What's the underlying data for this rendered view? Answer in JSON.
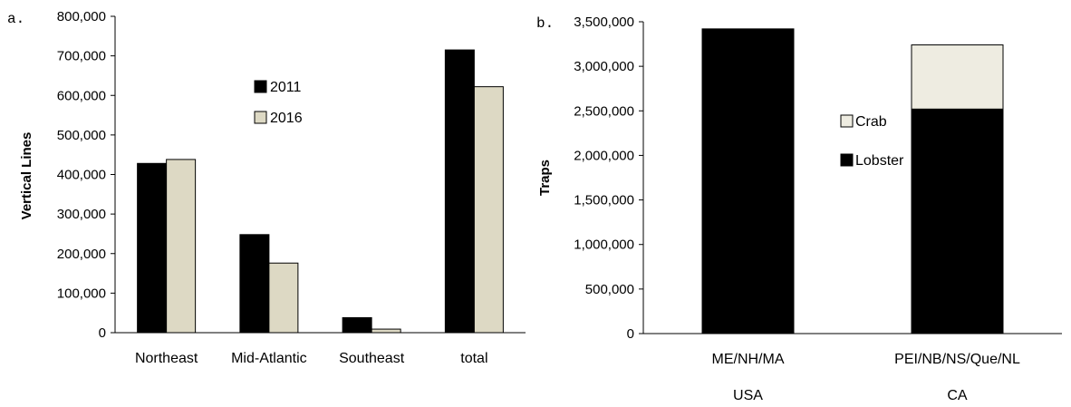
{
  "chart_data": [
    {
      "type": "bar",
      "panel_label": "a.",
      "ylabel": "Vertical Lines",
      "xlabel": "",
      "ylim": [
        0,
        800000
      ],
      "yticks": [
        "0",
        "100,000",
        "200,000",
        "300,000",
        "400,000",
        "500,000",
        "600,000",
        "700,000",
        "800,000"
      ],
      "categories": [
        "Northeast",
        "Mid-Atlantic",
        "Southeast",
        "total"
      ],
      "series": [
        {
          "name": "2011",
          "color": "#000000",
          "values": [
            428000,
            248000,
            38000,
            715000
          ]
        },
        {
          "name": "2016",
          "color": "#ddd9c4",
          "values": [
            438000,
            176000,
            9000,
            622000
          ]
        }
      ],
      "grid": false,
      "legend": "center"
    },
    {
      "type": "bar",
      "stacked": true,
      "panel_label": "b.",
      "ylabel": "Traps",
      "xlabel": "",
      "ylim": [
        0,
        3500000
      ],
      "yticks": [
        "0",
        "500,000",
        "1,000,000",
        "1,500,000",
        "2,000,000",
        "2,500,000",
        "3,000,000",
        "3,500,000"
      ],
      "categories": [
        "ME/NH/MA",
        "PEI/NB/NS/Que/NL"
      ],
      "category_groups": [
        "USA",
        "CA"
      ],
      "series": [
        {
          "name": "Lobster",
          "color": "#000000",
          "values": [
            3420000,
            2520000
          ]
        },
        {
          "name": "Crab",
          "color": "#eeece1",
          "values": [
            0,
            720000
          ]
        }
      ],
      "legend_order": [
        "Crab",
        "Lobster"
      ],
      "grid": false,
      "legend": "center-right"
    }
  ]
}
